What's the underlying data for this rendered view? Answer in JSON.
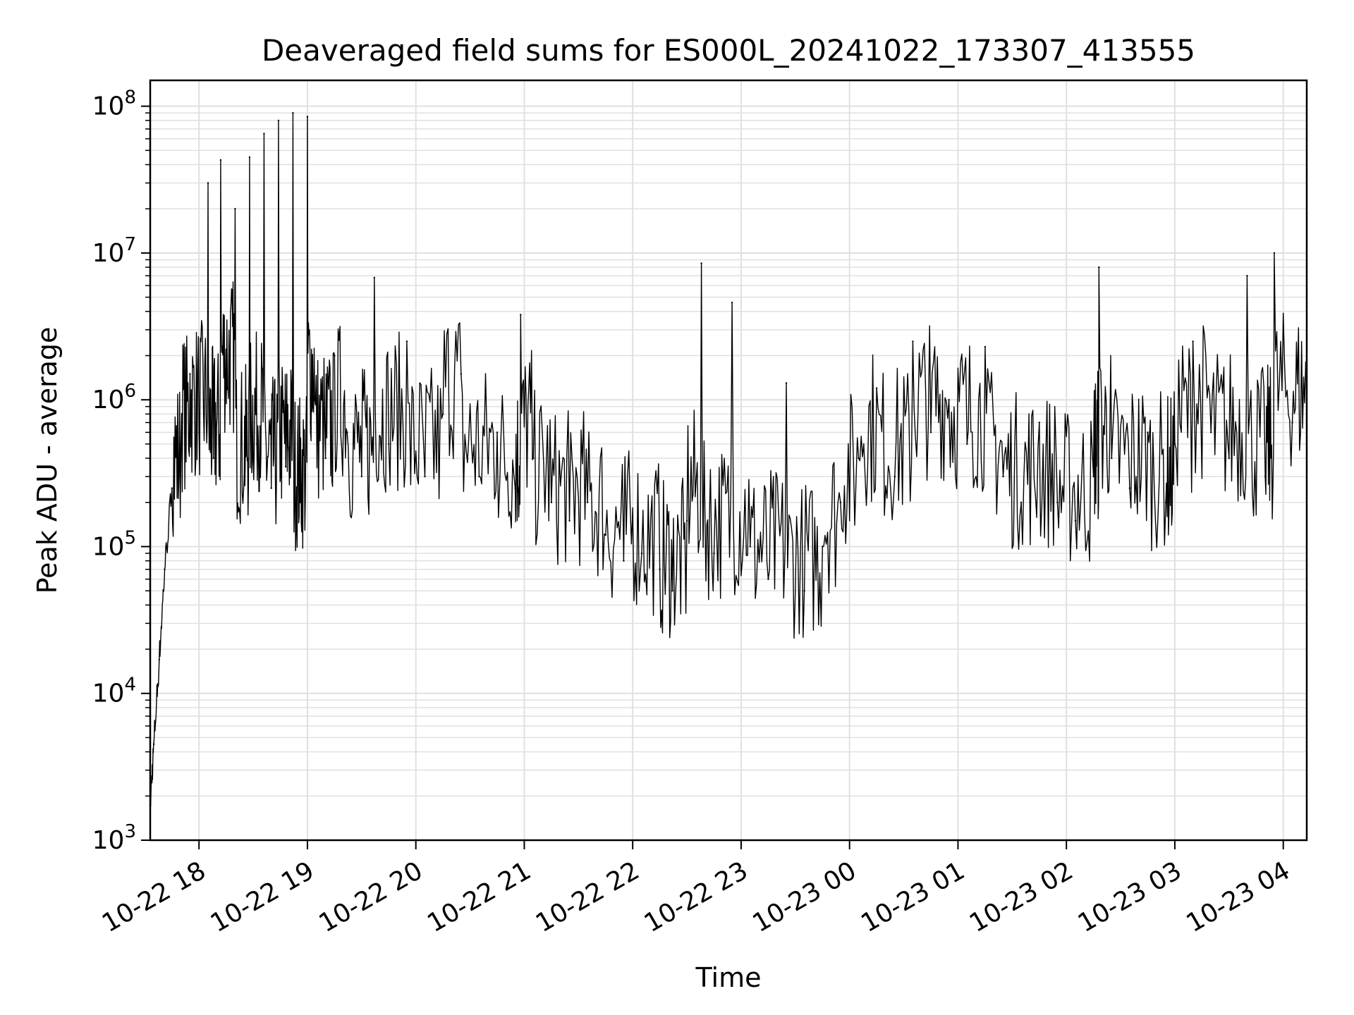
{
  "chart_data": {
    "type": "line",
    "title": "Deaveraged field sums for ES000L_20241022_173307_413555",
    "xlabel": "Time",
    "ylabel": "Peak ADU - average",
    "yscale": "log",
    "ylim": [
      1000,
      150000000
    ],
    "xlim": [
      "2024-10-22 17:33",
      "2024-10-23 04:13"
    ],
    "grid": true,
    "x_tick_labels": [
      "10-22 18",
      "10-22 19",
      "10-22 20",
      "10-22 21",
      "10-22 22",
      "10-22 23",
      "10-23 00",
      "10-23 01",
      "10-23 02",
      "10-23 03",
      "10-23 04"
    ],
    "y_tick_labels": [
      {
        "base": "10",
        "exp": "3"
      },
      {
        "base": "10",
        "exp": "4"
      },
      {
        "base": "10",
        "exp": "5"
      },
      {
        "base": "10",
        "exp": "6"
      },
      {
        "base": "10",
        "exp": "7"
      },
      {
        "base": "10",
        "exp": "8"
      }
    ],
    "line_color": "#000000",
    "grid_color": "#e0e0e0",
    "series": [
      {
        "x": [
          "2024-10-22 17:33",
          "2024-10-22 17:35",
          "2024-10-22 17:38",
          "2024-10-22 17:41",
          "2024-10-22 17:45",
          "2024-10-22 17:50",
          "2024-10-22 17:55",
          "2024-10-22 18:00",
          "2024-10-22 18:05",
          "2024-10-22 18:08",
          "2024-10-22 18:12",
          "2024-10-22 18:16",
          "2024-10-22 18:20",
          "2024-10-22 18:25",
          "2024-10-22 18:28",
          "2024-10-22 18:32",
          "2024-10-22 18:36",
          "2024-10-22 18:40",
          "2024-10-22 18:44",
          "2024-10-22 18:48",
          "2024-10-22 18:52",
          "2024-10-22 18:56",
          "2024-10-22 19:00",
          "2024-10-22 19:04",
          "2024-10-22 19:10",
          "2024-10-22 19:15",
          "2024-10-22 19:22",
          "2024-10-22 19:30",
          "2024-10-22 19:37",
          "2024-10-22 19:45",
          "2024-10-22 19:55",
          "2024-10-22 20:05",
          "2024-10-22 20:15",
          "2024-10-22 20:25",
          "2024-10-22 20:35",
          "2024-10-22 20:45",
          "2024-10-22 20:55",
          "2024-10-22 20:58",
          "2024-10-22 21:05",
          "2024-10-22 21:15",
          "2024-10-22 21:25",
          "2024-10-22 21:35",
          "2024-10-22 21:45",
          "2024-10-22 21:55",
          "2024-10-22 22:05",
          "2024-10-22 22:15",
          "2024-10-22 22:22",
          "2024-10-22 22:30",
          "2024-10-22 22:38",
          "2024-10-22 22:45",
          "2024-10-22 22:55",
          "2024-10-22 23:05",
          "2024-10-22 23:15",
          "2024-10-22 23:25",
          "2024-10-22 23:35",
          "2024-10-22 23:45",
          "2024-10-22 23:55",
          "2024-10-23 00:05",
          "2024-10-23 00:15",
          "2024-10-23 00:25",
          "2024-10-23 00:35",
          "2024-10-23 00:45",
          "2024-10-23 00:55",
          "2024-10-23 01:05",
          "2024-10-23 01:15",
          "2024-10-23 01:25",
          "2024-10-23 01:35",
          "2024-10-23 01:45",
          "2024-10-23 01:55",
          "2024-10-23 02:05",
          "2024-10-23 02:15",
          "2024-10-23 02:18",
          "2024-10-23 02:25",
          "2024-10-23 02:35",
          "2024-10-23 02:45",
          "2024-10-23 02:55",
          "2024-10-23 03:00",
          "2024-10-23 03:10",
          "2024-10-23 03:20",
          "2024-10-23 03:30",
          "2024-10-23 03:40",
          "2024-10-23 03:50",
          "2024-10-23 03:55",
          "2024-10-23 04:05",
          "2024-10-23 04:13"
        ],
        "values": [
          1700,
          4500,
          17000,
          70000,
          250000,
          500000,
          1500000,
          600000,
          30000000,
          400000,
          43000000,
          1200000,
          20000000,
          300000,
          45000000,
          500000,
          65000000,
          250000,
          80000000,
          350000,
          90000000,
          200000,
          85000000,
          1000000,
          400000,
          2000000,
          600000,
          300000,
          6800000,
          500000,
          2500000,
          300000,
          800000,
          1500000,
          300000,
          600000,
          250000,
          3800000,
          400000,
          200000,
          150000,
          200000,
          120000,
          80000,
          90000,
          70000,
          50000,
          150000,
          8500000,
          90000,
          4600000,
          100000,
          60000,
          1300000,
          50000,
          100000,
          200000,
          400000,
          1200000,
          300000,
          2500000,
          600000,
          1000000,
          500000,
          2300000,
          300000,
          200000,
          700000,
          200000,
          150000,
          300000,
          8000000,
          400000,
          250000,
          600000,
          200000,
          500000,
          2500000,
          600000,
          400000,
          7000000,
          300000,
          10000000,
          700000,
          1200000
        ]
      }
    ]
  }
}
